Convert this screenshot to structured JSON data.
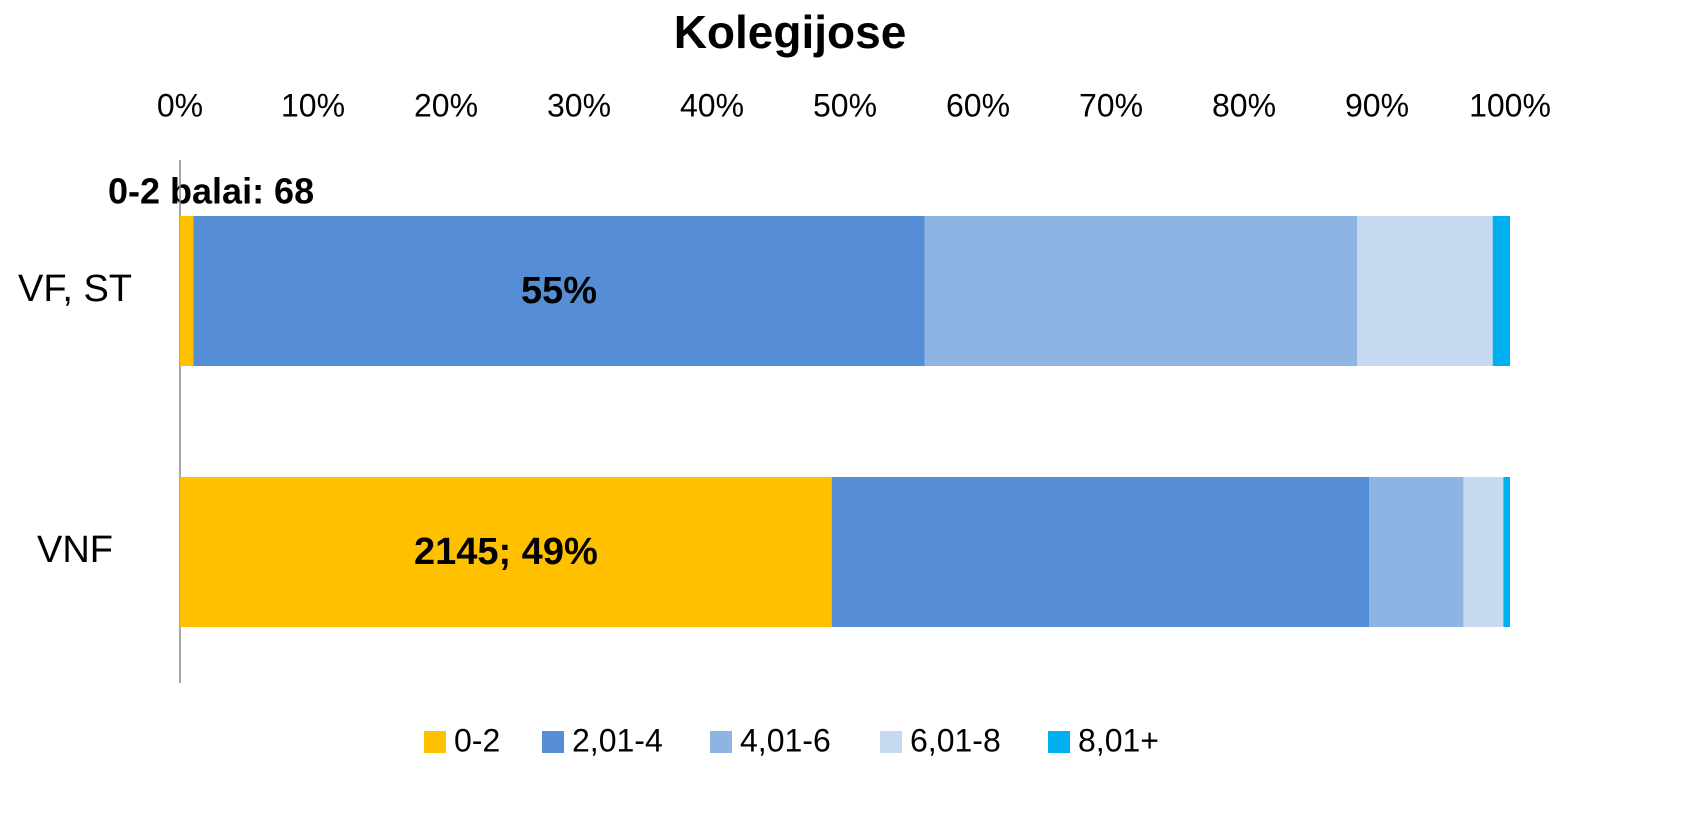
{
  "chart_data": {
    "type": "stacked_barh",
    "title": "Kolegijose",
    "categories": [
      "VF, ST",
      "VNF"
    ],
    "series": [
      {
        "name": "0-2",
        "color": "#FFC000",
        "values": [
          1,
          49
        ],
        "value_labels": [
          "1%",
          "2145; 49%"
        ]
      },
      {
        "name": "2,01-4",
        "color": "#558ED5",
        "values": [
          55,
          40.4
        ],
        "value_labels": [
          "55%",
          null
        ]
      },
      {
        "name": "4,01-6",
        "color": "#8EB4E3",
        "values": [
          32.5,
          7.1
        ]
      },
      {
        "name": "6,01-8",
        "color": "#C6D9F1",
        "values": [
          10.2,
          3
        ]
      },
      {
        "name": "8,01+",
        "color": "#00B0F0",
        "values": [
          1.3,
          0.5
        ]
      }
    ],
    "annotation": "0-2 balai: 68",
    "xlim": [
      0,
      100
    ],
    "xticks": [
      {
        "value": 0,
        "label": "0%"
      },
      {
        "value": 10,
        "label": "10%"
      },
      {
        "value": 20,
        "label": "20%"
      },
      {
        "value": 30,
        "label": "30%"
      },
      {
        "value": 40,
        "label": "40%"
      },
      {
        "value": 50,
        "label": "50%"
      },
      {
        "value": 60,
        "label": "60%"
      },
      {
        "value": 70,
        "label": "70%"
      },
      {
        "value": 80,
        "label": "80%"
      },
      {
        "value": 90,
        "label": "90%"
      },
      {
        "value": 100,
        "label": "100%"
      }
    ],
    "legend": "bottom"
  }
}
